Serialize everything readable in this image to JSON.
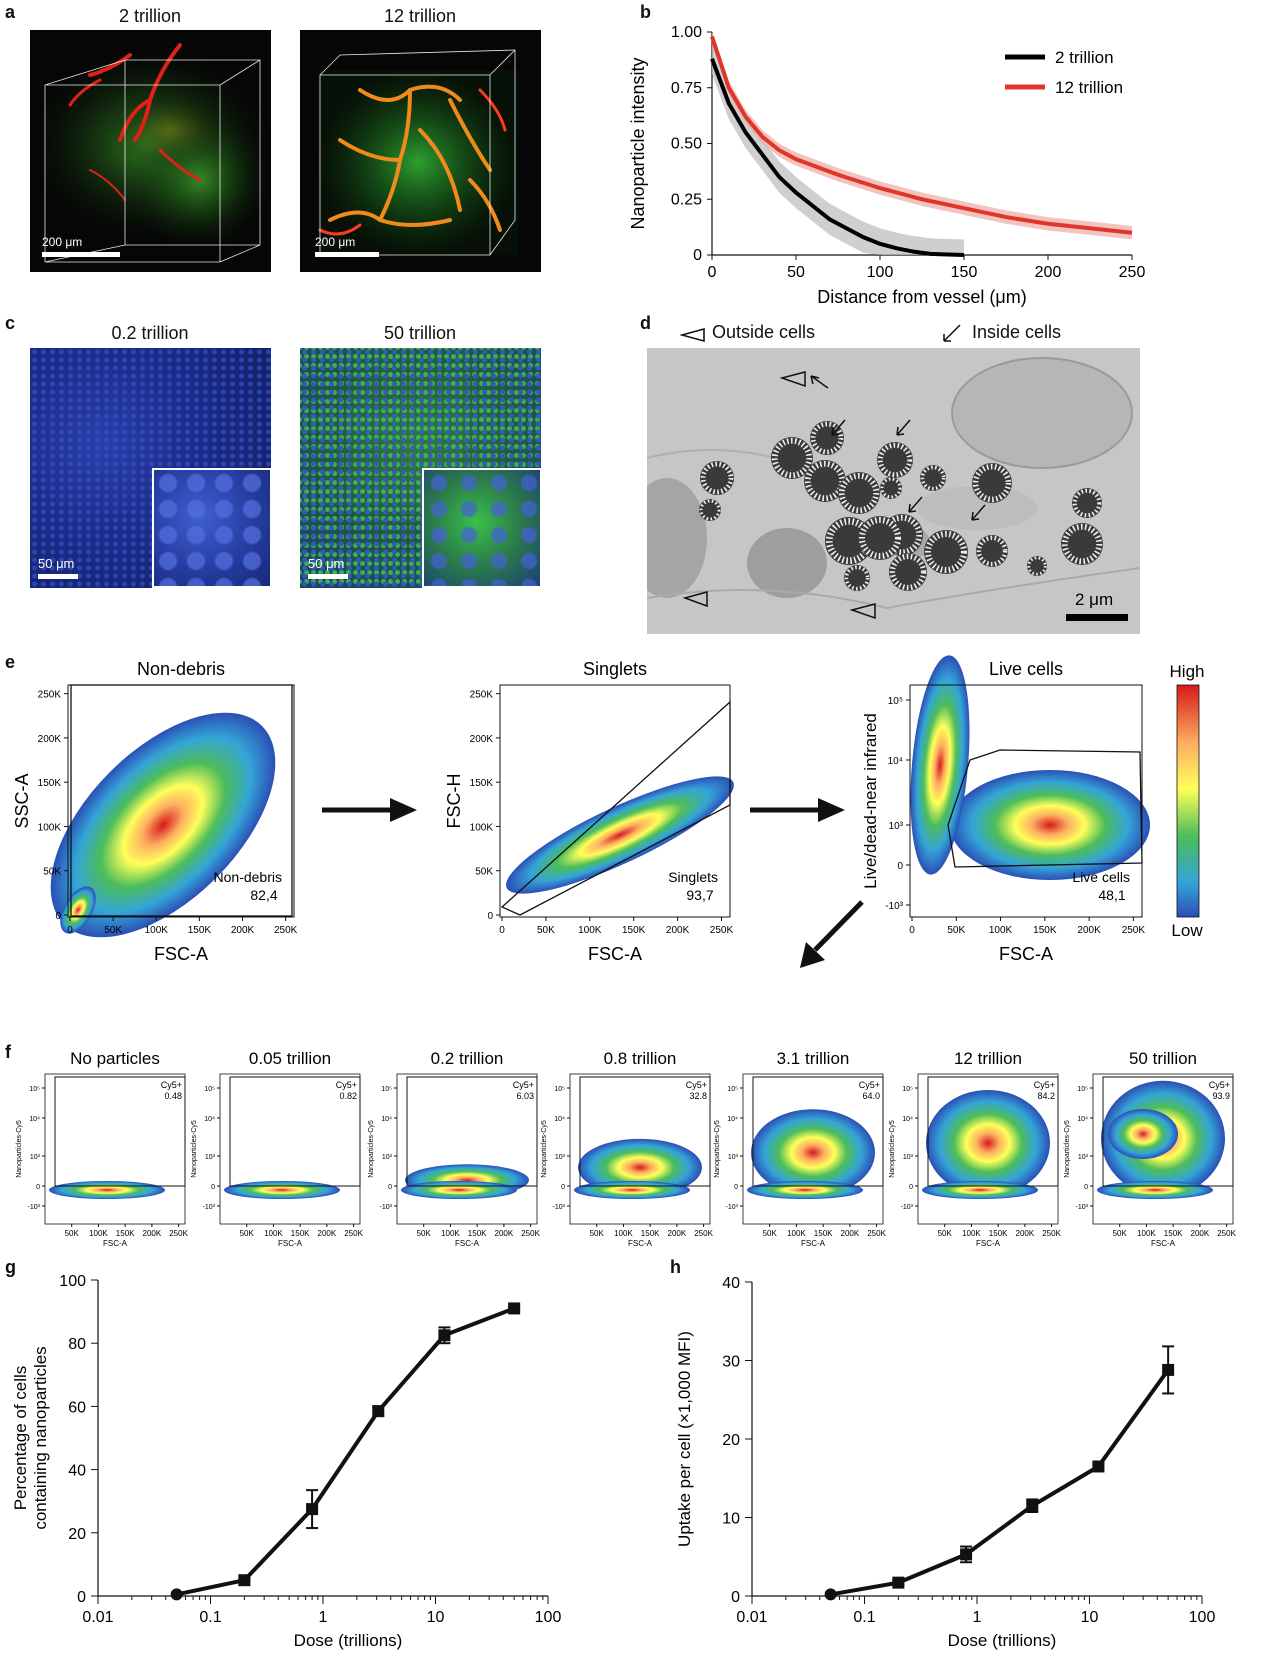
{
  "panel_a": {
    "label": "a",
    "titles": [
      "2 trillion",
      "12 trillion"
    ],
    "scale_labels": [
      "200 μm",
      "200 μm"
    ]
  },
  "panel_b": {
    "label": "b"
  },
  "panel_c": {
    "label": "c",
    "titles": [
      "0.2 trillion",
      "50 trillion"
    ],
    "scale_labels": [
      "50 μm",
      "50 μm"
    ]
  },
  "panel_d": {
    "label": "d",
    "legend_outside": "Outside cells",
    "legend_inside": "Inside cells",
    "scale_label": "2 μm"
  },
  "panel_e": {
    "label": "e",
    "plots": [
      {
        "title": "Non-debris",
        "xlabel": "FSC-A",
        "ylabel": "SSC-A",
        "gate_name": "Non-debris",
        "gate_value": "82,4"
      },
      {
        "title": "Singlets",
        "xlabel": "FSC-A",
        "ylabel": "FSC-H",
        "gate_name": "Singlets",
        "gate_value": "93,7"
      },
      {
        "title": "Live cells",
        "xlabel": "FSC-A",
        "ylabel": "Live/dead-near infrared",
        "gate_name": "Live cells",
        "gate_value": "48,1"
      }
    ],
    "lin_ticks": [
      "0",
      "50K",
      "100K",
      "150K",
      "200K",
      "250K"
    ],
    "log_ticks": [
      "10⁵",
      "10⁴",
      "10³",
      "0",
      "-10³"
    ],
    "colorbar_high": "High",
    "colorbar_low": "Low"
  },
  "panel_f": {
    "label": "f",
    "ylabel": "Nanoparticles-Cy5",
    "xlabel": "FSC-A",
    "gate_label": "Cy5+",
    "x_ticks": [
      "50K",
      "100K",
      "150K",
      "200K",
      "250K"
    ],
    "y_ticks": [
      "10⁵",
      "10⁴",
      "10³",
      "0",
      "-10³"
    ],
    "plots": [
      {
        "title": "No particles",
        "value": "0.48"
      },
      {
        "title": "0.05 trillion",
        "value": "0.82"
      },
      {
        "title": "0.2 trillion",
        "value": "6.03"
      },
      {
        "title": "0.8 trillion",
        "value": "32.8"
      },
      {
        "title": "3.1 trillion",
        "value": "64.0"
      },
      {
        "title": "12 trillion",
        "value": "84.2"
      },
      {
        "title": "50 trillion",
        "value": "93.9"
      }
    ]
  },
  "panel_g": {
    "label": "g"
  },
  "panel_h": {
    "label": "h"
  },
  "chart_data": [
    {
      "type": "line",
      "panel": "b",
      "xlabel": "Distance from vessel (μm)",
      "ylabel": "Nanoparticle intensity",
      "xlim": [
        0,
        250
      ],
      "ylim": [
        0,
        1
      ],
      "x_ticks": [
        "0",
        "50",
        "100",
        "150",
        "200",
        "250"
      ],
      "y_ticks": [
        "0",
        "0.25",
        "0.50",
        "0.75",
        "1.00"
      ],
      "legend_position": "top-right",
      "series": [
        {
          "name": "2 trillion",
          "color": "#000000",
          "x": [
            0,
            10,
            20,
            30,
            40,
            50,
            60,
            70,
            80,
            90,
            100,
            110,
            120,
            130,
            140,
            150
          ],
          "y": [
            0.88,
            0.68,
            0.55,
            0.45,
            0.35,
            0.28,
            0.22,
            0.16,
            0.12,
            0.08,
            0.05,
            0.03,
            0.015,
            0.005,
            0.002,
            0.0
          ]
        },
        {
          "name": "12 trillion",
          "color": "#e0362a",
          "x": [
            0,
            10,
            20,
            30,
            40,
            50,
            75,
            100,
            125,
            150,
            175,
            200,
            225,
            250
          ],
          "y": [
            0.98,
            0.75,
            0.62,
            0.53,
            0.47,
            0.43,
            0.36,
            0.3,
            0.25,
            0.21,
            0.17,
            0.14,
            0.12,
            0.1
          ]
        }
      ]
    },
    {
      "type": "line",
      "panel": "g",
      "xlabel": "Dose (trillions)",
      "ylabel": "Percentage of cells containing nanoparticles",
      "xscale": "log",
      "xlim": [
        0.01,
        100
      ],
      "ylim": [
        0,
        100
      ],
      "x_ticks": [
        "0.01",
        "0.1",
        "1",
        "10",
        "100"
      ],
      "y_ticks": [
        "0",
        "20",
        "40",
        "60",
        "80",
        "100"
      ],
      "x": [
        0.05,
        0.2,
        0.8,
        3.1,
        12,
        50
      ],
      "y": [
        0.5,
        5,
        27.5,
        58.5,
        82.5,
        91
      ],
      "err": [
        0,
        0.5,
        6,
        1.5,
        2.5,
        0.5
      ],
      "markers": [
        "circle",
        "square",
        "square",
        "square",
        "square",
        "square"
      ]
    },
    {
      "type": "line",
      "panel": "h",
      "xlabel": "Dose (trillions)",
      "ylabel": "Uptake per cell (×1,000 MFI)",
      "xscale": "log",
      "xlim": [
        0.01,
        100
      ],
      "ylim": [
        0,
        40
      ],
      "x_ticks": [
        "0.01",
        "0.1",
        "1",
        "10",
        "100"
      ],
      "y_ticks": [
        "0",
        "10",
        "20",
        "30",
        "40"
      ],
      "x": [
        0.05,
        0.2,
        0.8,
        3.1,
        12,
        50
      ],
      "y": [
        0.2,
        1.7,
        5.3,
        11.5,
        16.5,
        28.8
      ],
      "err": [
        0,
        0.3,
        1.0,
        0.8,
        0.3,
        3.0
      ],
      "markers": [
        "circle",
        "square",
        "square",
        "square",
        "square",
        "square"
      ]
    }
  ]
}
